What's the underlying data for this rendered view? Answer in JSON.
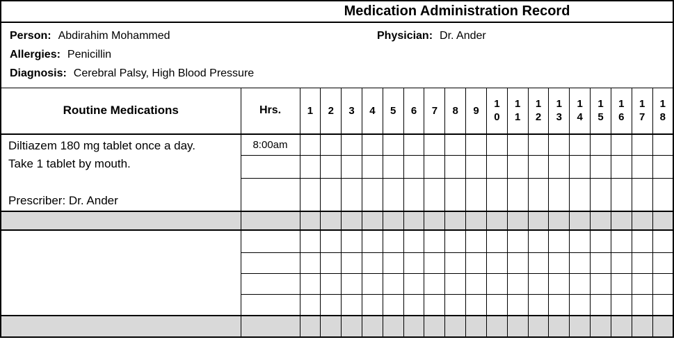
{
  "title": "Medication Administration Record",
  "patient_info": {
    "person_label": "Person:",
    "person_value": "Abdirahim Mohammed",
    "physician_label": "Physician:",
    "physician_value": "Dr. Ander",
    "allergies_label": "Allergies:",
    "allergies_value": "Penicillin",
    "diagnosis_label": "Diagnosis:",
    "diagnosis_value": "Cerebral Palsy, High Blood Pressure"
  },
  "table": {
    "medications_header": "Routine Medications",
    "hours_header": "Hrs.",
    "hour_columns": [
      "1",
      "2",
      "3",
      "4",
      "5",
      "6",
      "7",
      "8",
      "9",
      "10",
      "11",
      "12",
      "13",
      "14",
      "15",
      "16",
      "17",
      "18"
    ],
    "medication_blocks": [
      {
        "description_lines": [
          "Diltiazem 180 mg tablet once a day.",
          "Take 1 tablet by mouth.",
          "",
          "Prescriber: Dr. Ander"
        ],
        "times": [
          "8:00am",
          "",
          ""
        ]
      },
      {
        "description_lines": [
          "",
          "",
          "",
          ""
        ],
        "times": [
          "",
          "",
          "",
          ""
        ]
      }
    ]
  },
  "colors": {
    "shaded_row": "#d9d9d9",
    "border": "#000000",
    "background": "#ffffff"
  }
}
